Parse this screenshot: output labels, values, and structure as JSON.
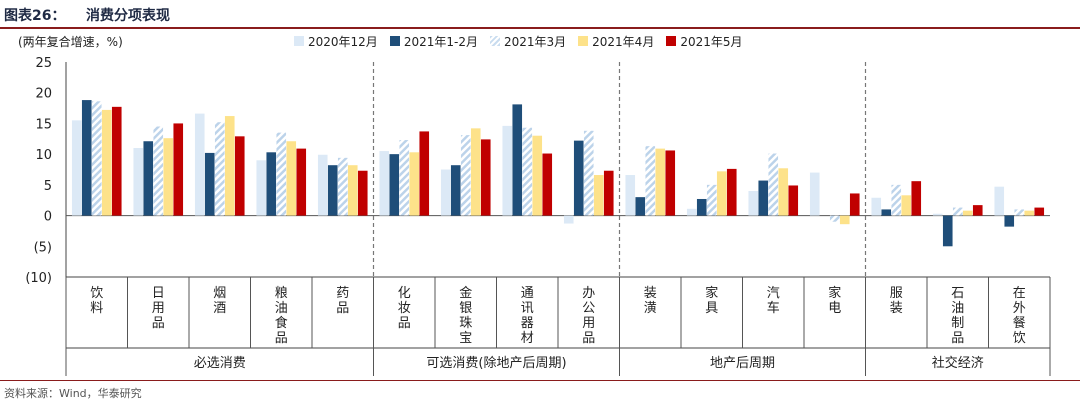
{
  "header": {
    "label": "图表26：",
    "title": "消费分项表现"
  },
  "chart_data": {
    "type": "bar",
    "ylabel": "(两年复合增速，%)",
    "ylim": [
      -10,
      25
    ],
    "yticks": [
      25,
      20,
      15,
      10,
      5,
      0,
      -5,
      -10
    ],
    "ytick_labels": [
      "25",
      "20",
      "15",
      "10",
      "5",
      "0",
      "(5)",
      "(10)"
    ],
    "categories": [
      "饮料",
      "日用品",
      "烟酒",
      "粮油食品",
      "药品",
      "化妆品",
      "金银珠宝",
      "通讯器材",
      "办公用品",
      "装潢",
      "家具",
      "汽车",
      "家电",
      "服装",
      "石油制品",
      "在外餐饮"
    ],
    "groups": [
      {
        "label": "必选消费",
        "start": 0,
        "end": 4
      },
      {
        "label": "可选消费(除地产后周期)",
        "start": 5,
        "end": 8
      },
      {
        "label": "地产后周期",
        "start": 9,
        "end": 12
      },
      {
        "label": "社交经济",
        "start": 13,
        "end": 15
      }
    ],
    "series": [
      {
        "name": "2020年12月",
        "color": "#dce9f6",
        "values": [
          15.5,
          11,
          16.6,
          9,
          9.9,
          10.5,
          7.5,
          14.6,
          -1.3,
          6.6,
          1.1,
          4,
          7,
          2.9,
          0.3,
          4.7
        ]
      },
      {
        "name": "2021年1-2月",
        "color": "#1f4e79",
        "values": [
          18.8,
          12.1,
          10.2,
          10.3,
          8.2,
          10,
          8.2,
          18.1,
          12.2,
          3,
          2.7,
          5.7,
          0,
          1,
          -5,
          -1.8
        ]
      },
      {
        "name": "2021年3月",
        "color": "#bcd3ea",
        "hatch": true,
        "values": [
          18.6,
          14.5,
          15.2,
          13.5,
          9.4,
          12.3,
          13.1,
          14.3,
          13.8,
          11.3,
          5,
          10.1,
          -1,
          5,
          1.3,
          1
        ]
      },
      {
        "name": "2021年4月",
        "color": "#fde28a",
        "values": [
          17.2,
          12.6,
          16.2,
          12.1,
          8.2,
          10.3,
          14.2,
          13,
          6.6,
          10.9,
          7.2,
          7.7,
          -1.4,
          3.3,
          0.8,
          0.8
        ]
      },
      {
        "name": "2021年5月",
        "color": "#c00000",
        "values": [
          17.7,
          15,
          12.9,
          10.9,
          7.3,
          13.7,
          12.4,
          10.1,
          7.3,
          10.6,
          7.6,
          4.9,
          3.6,
          5.6,
          1.7,
          1.3
        ]
      }
    ]
  },
  "footer": {
    "source": "资料来源：Wind，华泰研究"
  }
}
